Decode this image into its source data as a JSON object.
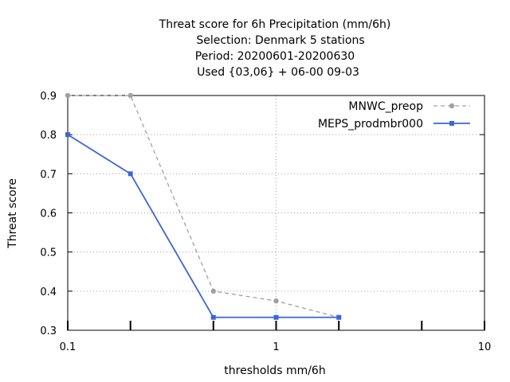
{
  "chart_data": {
    "type": "line",
    "title_lines": [
      "Threat score  for 6h Precipitation (mm/6h)",
      "Selection: Denmark      5 stations",
      "Period: 20200601-20200630",
      "Used {03,06} + 06-00 09-03"
    ],
    "xlabel": "thresholds mm/6h",
    "ylabel": "Threat score",
    "xscale": "log",
    "xlim": [
      0.1,
      10
    ],
    "ylim": [
      0.3,
      0.9
    ],
    "x_ticks": [
      0.1,
      1,
      10
    ],
    "x_tick_labels": [
      "0.1",
      "1",
      "10"
    ],
    "y_ticks": [
      0.3,
      0.4,
      0.5,
      0.6,
      0.7,
      0.8,
      0.9
    ],
    "y_tick_labels": [
      "0.3",
      "0.4",
      "0.5",
      "0.6",
      "0.7",
      "0.8",
      "0.9"
    ],
    "x_minor_ticks": [
      0.2,
      0.5,
      2,
      5
    ],
    "grid": true,
    "legend_position": "top-right",
    "series": [
      {
        "name": "MNWC_preop",
        "color": "#a0a0a0",
        "dashed": true,
        "marker": "circle",
        "x": [
          0.1,
          0.2,
          0.5,
          1,
          2
        ],
        "y": [
          0.9,
          0.9,
          0.4,
          0.375,
          0.333
        ]
      },
      {
        "name": "MEPS_prodmbr000",
        "color": "#3a66d6",
        "dashed": false,
        "marker": "square",
        "x": [
          0.1,
          0.2,
          0.5,
          1,
          2
        ],
        "y": [
          0.8,
          0.7,
          0.333,
          0.333,
          0.333
        ]
      }
    ]
  }
}
